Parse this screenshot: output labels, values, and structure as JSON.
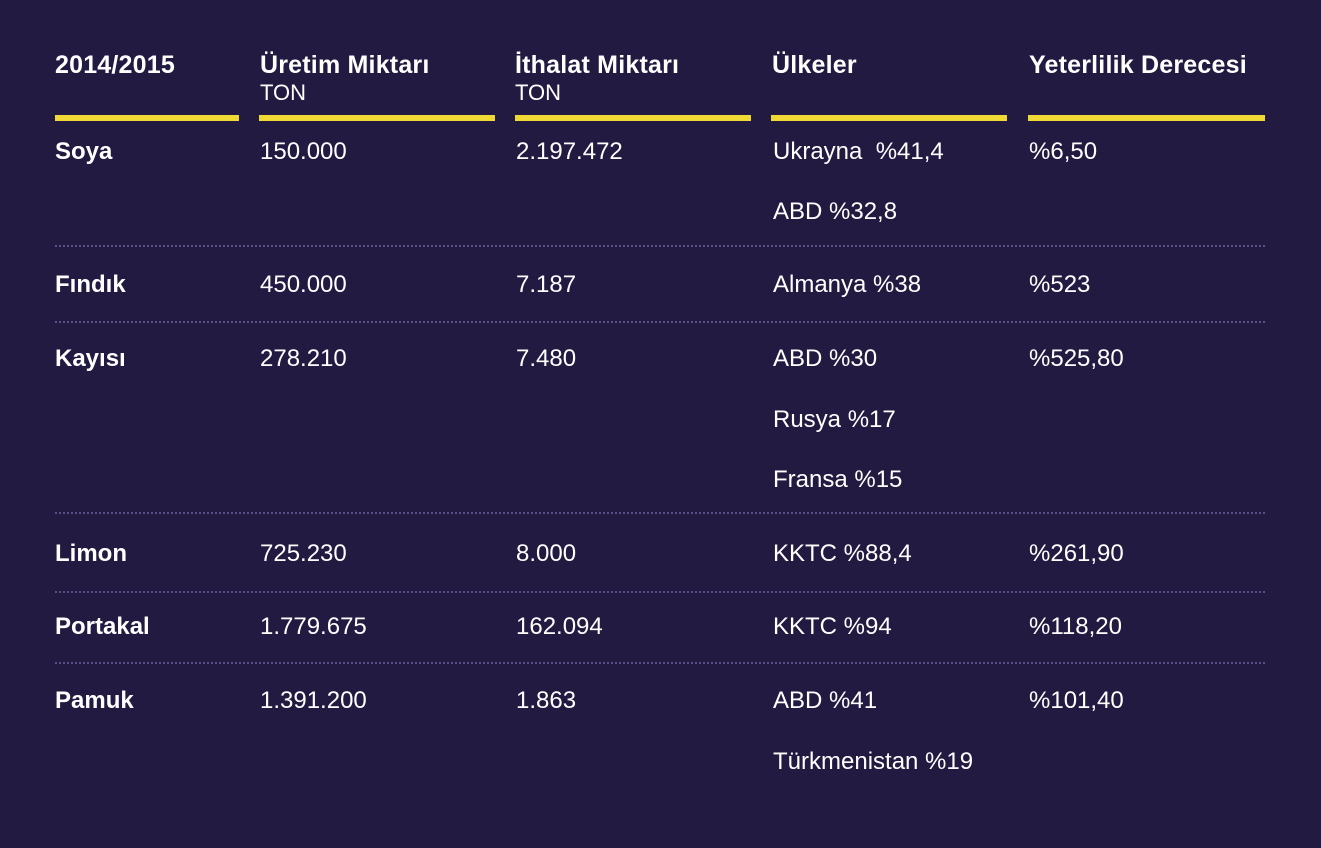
{
  "colors": {
    "background": "#221a41",
    "accent": "#f0d835",
    "separator": "#5a4f86",
    "text": "#ffffff"
  },
  "headers": [
    {
      "title": "2014/2015",
      "unit": ""
    },
    {
      "title": "Üretim Miktarı",
      "unit": "TON"
    },
    {
      "title": "İthalat Miktarı",
      "unit": "TON"
    },
    {
      "title": "Ülkeler",
      "unit": ""
    },
    {
      "title": "Yeterlilik Derecesi",
      "unit": ""
    }
  ],
  "rows": [
    {
      "product": "Soya",
      "production": "150.000",
      "import": "2.197.472",
      "countries": [
        "Ukrayna  %41,4",
        "ABD %32,8"
      ],
      "sufficiency": "%6,50"
    },
    {
      "product": "Fındık",
      "production": "450.000",
      "import": "7.187",
      "countries": [
        "Almanya %38"
      ],
      "sufficiency": "%523"
    },
    {
      "product": "Kayısı",
      "production": "278.210",
      "import": "7.480",
      "countries": [
        "ABD %30",
        "Rusya %17",
        "Fransa %15"
      ],
      "sufficiency": "%525,80"
    },
    {
      "product": "Limon",
      "production": "725.230",
      "import": "8.000",
      "countries": [
        "KKTC %88,4"
      ],
      "sufficiency": "%261,90"
    },
    {
      "product": "Portakal",
      "production": "1.779.675",
      "import": "162.094",
      "countries": [
        "KKTC %94"
      ],
      "sufficiency": "%118,20"
    },
    {
      "product": "Pamuk",
      "production": "1.391.200",
      "import": "1.863",
      "countries": [
        "ABD %41",
        "Türkmenistan %19"
      ],
      "sufficiency": "%101,40"
    }
  ]
}
